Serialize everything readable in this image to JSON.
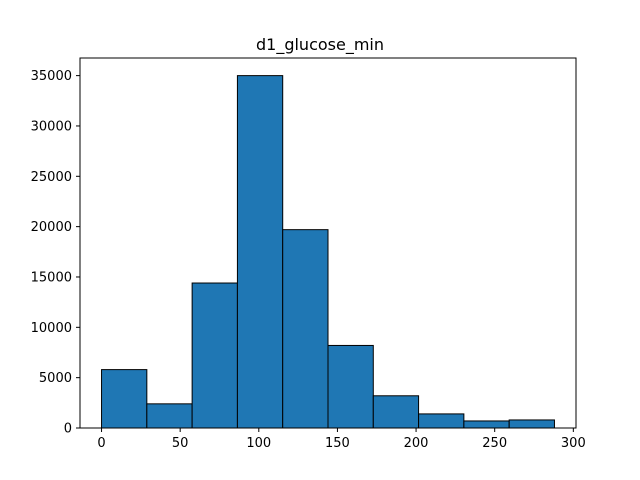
{
  "chart_data": {
    "type": "bar",
    "title": "d1_glucose_min",
    "xlabel": "",
    "ylabel": "",
    "bin_edges": [
      0,
      28.8,
      57.6,
      86.4,
      115.2,
      144.0,
      172.8,
      201.6,
      230.4,
      259.2,
      288.0
    ],
    "values": [
      5800,
      2400,
      14400,
      35000,
      19700,
      8200,
      3200,
      1400,
      700,
      800
    ],
    "xlim": [
      -13.7,
      301.7
    ],
    "ylim": [
      0,
      36750
    ],
    "x_ticks": [
      0,
      50,
      100,
      150,
      200,
      250,
      300
    ],
    "y_ticks": [
      0,
      5000,
      10000,
      15000,
      20000,
      25000,
      30000,
      35000
    ],
    "grid": false,
    "legend": "none",
    "colors": {
      "bar_fill": "#1f77b4",
      "bar_edge": "#000000",
      "axis": "#000000",
      "background": "#ffffff"
    }
  }
}
